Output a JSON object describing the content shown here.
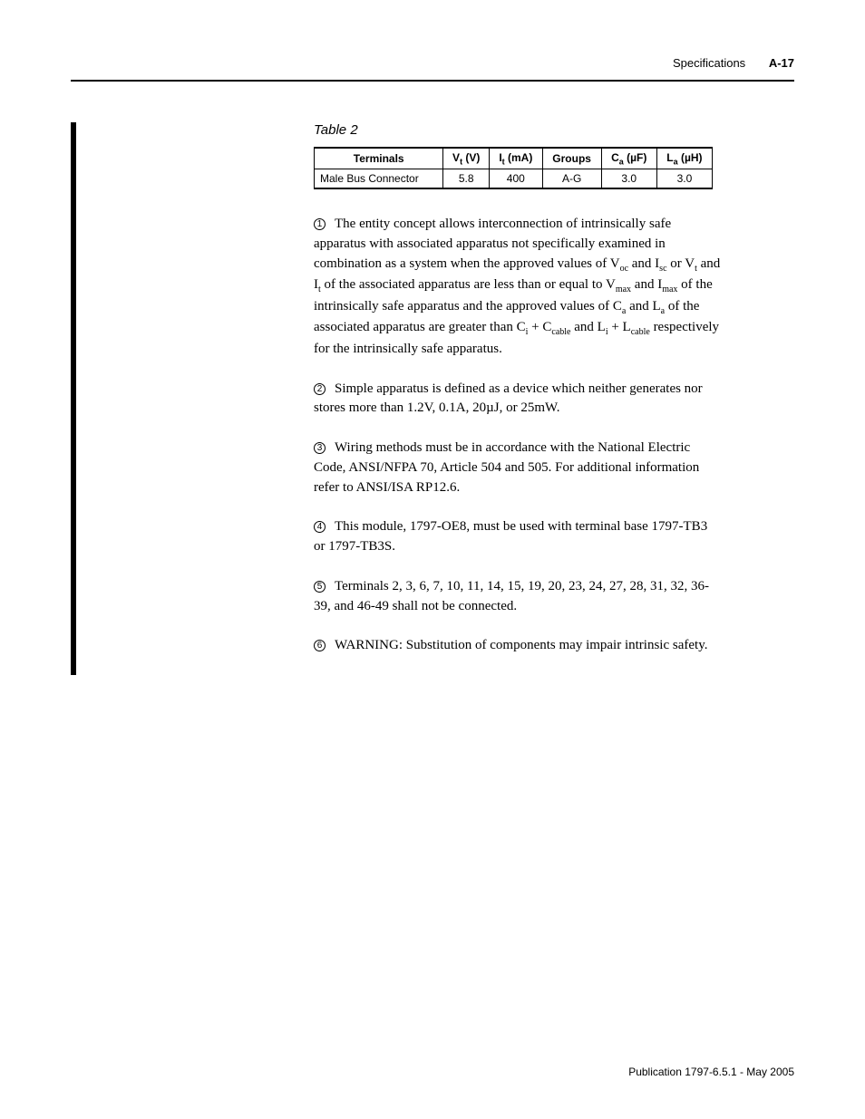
{
  "header": {
    "label": "Specifications",
    "page": "A-17"
  },
  "table": {
    "caption": "Table 2",
    "columns": [
      {
        "text": "Terminals"
      },
      {
        "pre": "V",
        "sub": "t",
        "post": " (V)"
      },
      {
        "pre": "I",
        "sub": "t",
        "post": " (mA)"
      },
      {
        "text": "Groups"
      },
      {
        "pre": "C",
        "sub": "a",
        "post": " (",
        "unit": "µF)"
      },
      {
        "pre": "L",
        "sub": "a",
        "post": " (",
        "unit": "µH)"
      }
    ],
    "row": {
      "terminals": "Male Bus Connector",
      "vt": "5.8",
      "it": "400",
      "groups": "A-G",
      "ca": "3.0",
      "la": "3.0"
    }
  },
  "notes": {
    "n1": {
      "num": "1",
      "parts": {
        "a": "The entity concept allows interconnection of intrinsically safe apparatus with associated apparatus not specifically examined in combination as a system when the approved values of V",
        "b": " and I",
        "c": " or V",
        "d": " and I",
        "e": " of the associated apparatus are less than or equal to V",
        "f": " and I",
        "g": " of the intrinsically safe apparatus and the approved values of C",
        "h": " and L",
        "i": " of the associated apparatus are greater than C",
        "j": " + C",
        "k": " and L",
        "l": " + L",
        "m": " respectively for the intrinsically safe apparatus."
      },
      "subs": {
        "oc": "oc",
        "sc": "sc",
        "t": "t",
        "max": "max",
        "a": "a",
        "i": "i",
        "cable": "cable"
      }
    },
    "n2": {
      "num": "2",
      "text": "Simple apparatus is defined as a device which neither generates nor stores more than 1.2V, 0.1A, 20µJ, or 25mW."
    },
    "n3": {
      "num": "3",
      "text": "Wiring methods must be in accordance with the National Electric Code, ANSI/NFPA 70, Article 504 and 505. For additional information refer to ANSI/ISA RP12.6."
    },
    "n4": {
      "num": "4",
      "text": "This module, 1797-OE8, must be used with terminal base 1797-TB3 or 1797-TB3S."
    },
    "n5": {
      "num": "5",
      "text": "Terminals 2, 3, 6, 7, 10, 11, 14, 15, 19, 20, 23, 24, 27, 28, 31, 32, 36-39, and 46-49 shall not be connected."
    },
    "n6": {
      "num": "6",
      "text": "WARNING: Substitution of components may impair intrinsic safety."
    }
  },
  "footer": "Publication 1797-6.5.1 - May 2005"
}
